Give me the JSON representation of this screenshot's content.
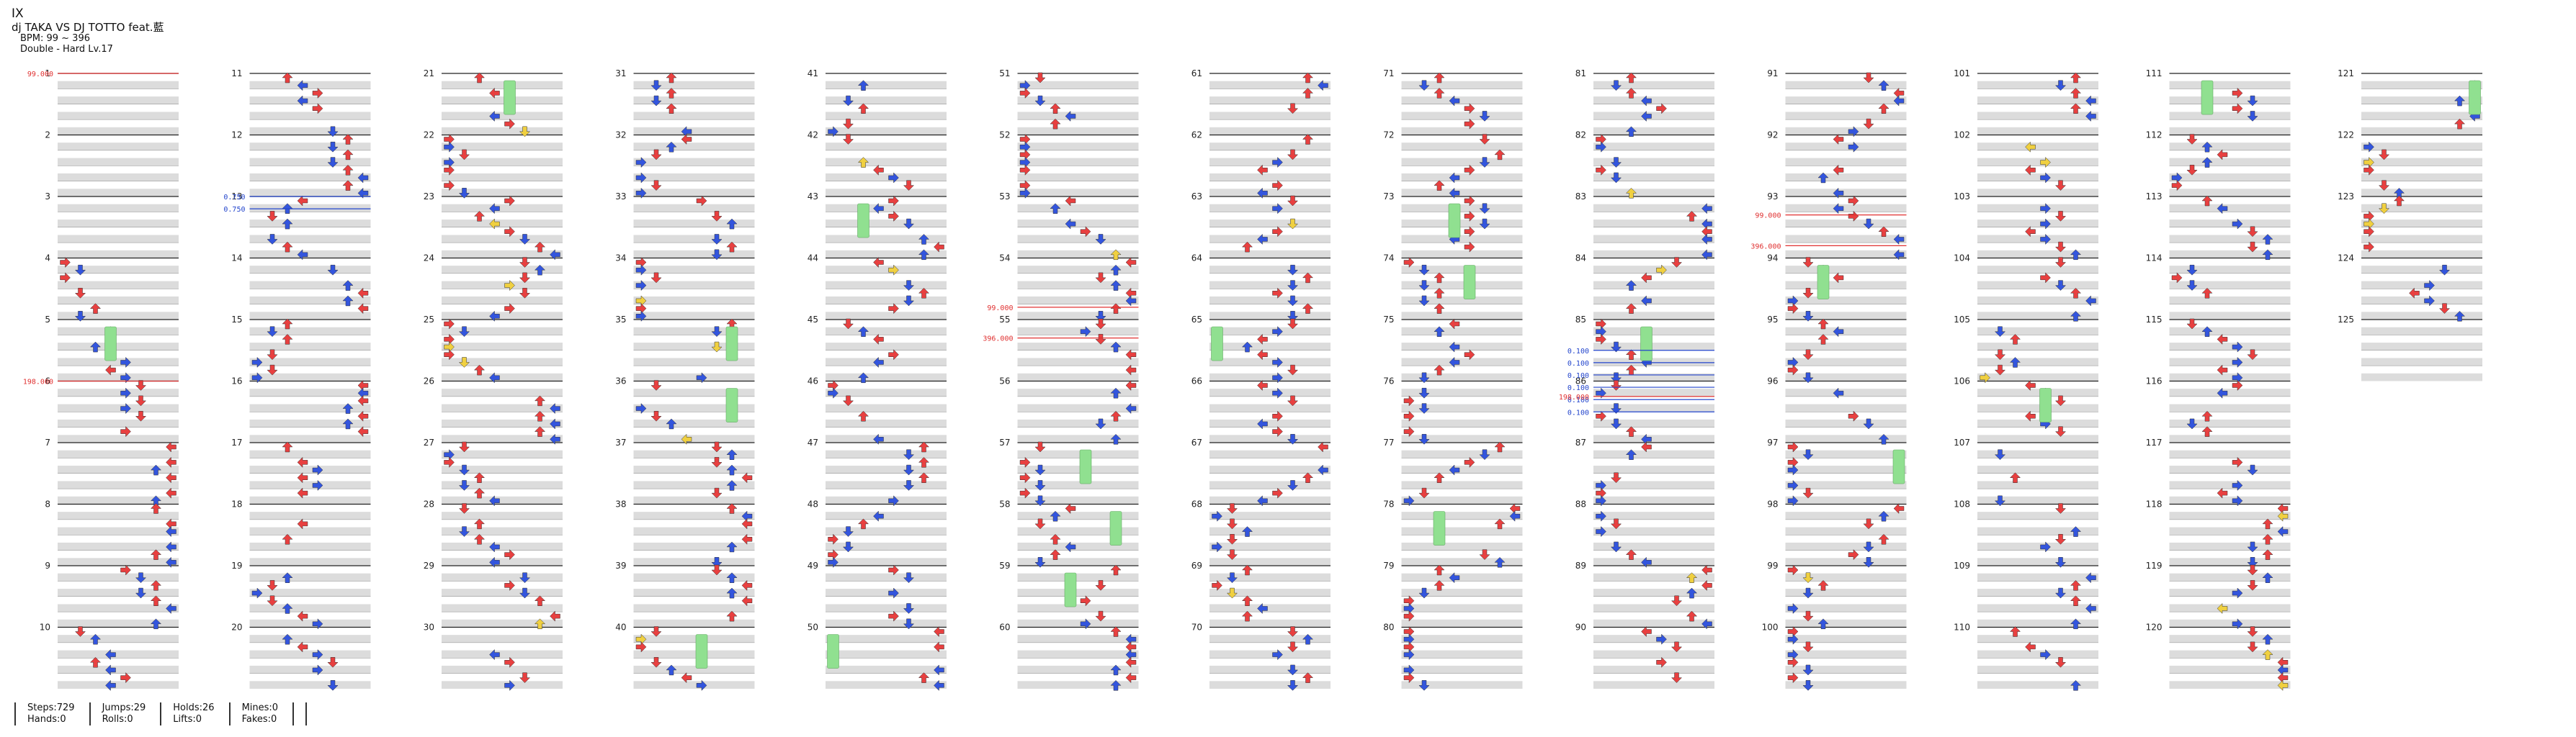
{
  "song": {
    "title": "IX",
    "artist": "dj TAKA VS DJ TOTTO feat.藍",
    "bpm_text": "BPM: 99 ~ 396",
    "difficulty_text": "Double - Hard  Lv.17"
  },
  "measure_total": 125,
  "measures_per_column": 10,
  "columns": 13,
  "speed_markers": [
    {
      "measure": 1,
      "text": "99.000",
      "color": "#e03030"
    },
    {
      "measure": 6,
      "text": "198.000",
      "color": "#e03030"
    },
    {
      "measure": 13,
      "text": "0.750",
      "color": "#2244cc"
    },
    {
      "measure": 13.2,
      "text": "0.750",
      "color": "#2244cc"
    },
    {
      "measure": 54.8,
      "text": "99.000",
      "color": "#e03030"
    },
    {
      "measure": 55.3,
      "text": "396.000",
      "color": "#e03030"
    },
    {
      "measure": 85.5,
      "text": "0.100",
      "color": "#2244cc"
    },
    {
      "measure": 85.7,
      "text": "0.100",
      "color": "#2244cc"
    },
    {
      "measure": 85.9,
      "text": "0.100",
      "color": "#2244cc"
    },
    {
      "measure": 86.1,
      "text": "0.100",
      "color": "#2244cc"
    },
    {
      "measure": 86.3,
      "text": "0.100",
      "color": "#2244cc"
    },
    {
      "measure": 86.5,
      "text": "0.100",
      "color": "#2244cc"
    },
    {
      "measure": 86.25,
      "text": "198.000",
      "color": "#e03030"
    },
    {
      "measure": 93.3,
      "text": "99.000",
      "color": "#e03030"
    },
    {
      "measure": 93.8,
      "text": "396.000",
      "color": "#e03030"
    }
  ],
  "colors": {
    "quarter": "#e84040",
    "eighth": "#3355dd",
    "sixteenth": "#f0d040",
    "purple": "#aa44dd",
    "hold": "#90e090",
    "band": "#dcdcdc",
    "beat_line": "#222222"
  },
  "stats": {
    "steps": "Steps:729",
    "hands": "Hands:0",
    "jumps": "Jumps:29",
    "rolls": "Rolls:0",
    "holds": "Holds:26",
    "lifts": "Lifts:0",
    "mines": "Mines:0",
    "fakes": "Fakes:0"
  }
}
